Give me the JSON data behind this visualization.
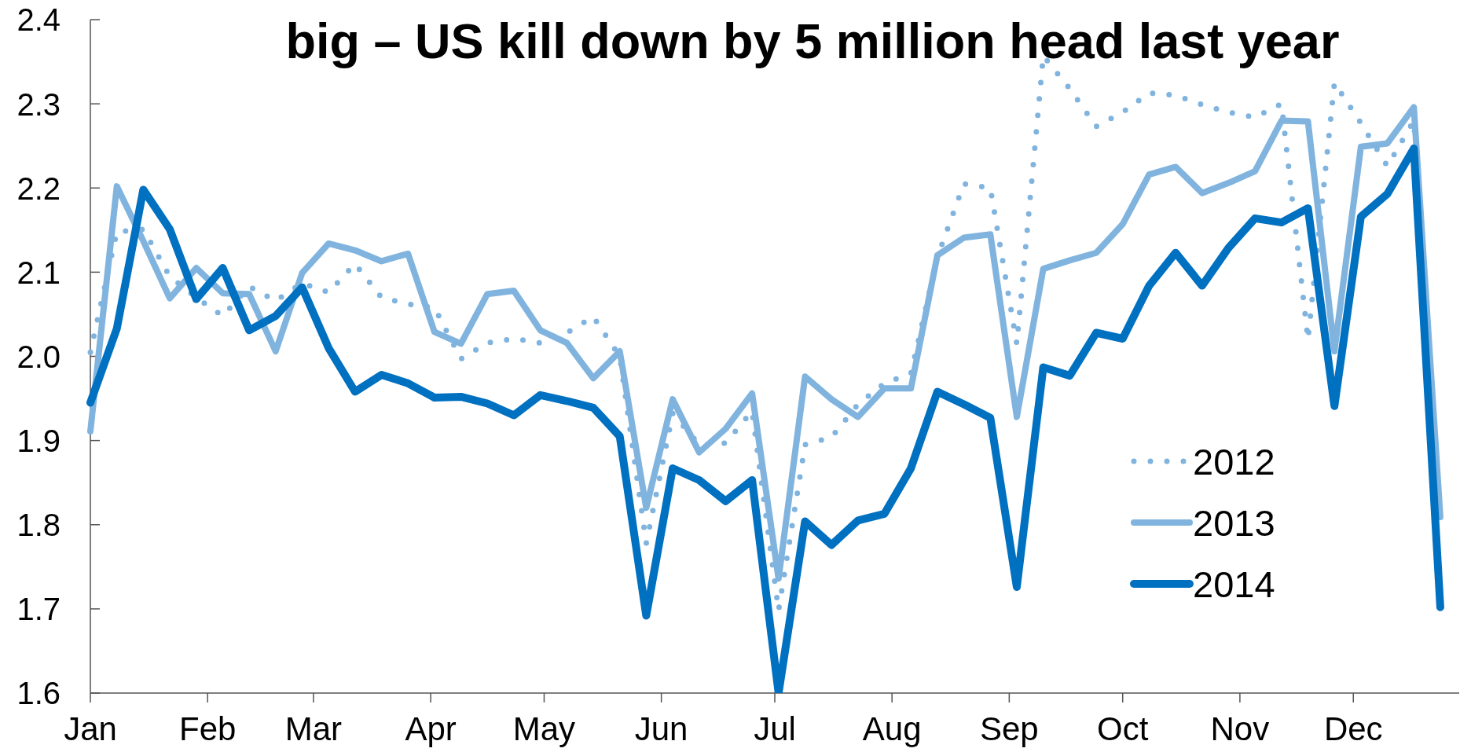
{
  "chart_data": {
    "type": "line",
    "title": "big – US kill down by 5 million head last year",
    "x": [
      "--01-01",
      "--01-08",
      "--01-15",
      "--01-22",
      "--01-29",
      "--02-05",
      "--02-12",
      "--02-19",
      "--02-26",
      "--03-05",
      "--03-12",
      "--03-19",
      "--03-26",
      "--04-02",
      "--04-09",
      "--04-16",
      "--04-23",
      "--04-30",
      "--05-07",
      "--05-14",
      "--05-21",
      "--05-28",
      "--06-04",
      "--06-11",
      "--06-18",
      "--06-25",
      "--07-02",
      "--07-09",
      "--07-16",
      "--07-23",
      "--07-30",
      "--08-06",
      "--08-13",
      "--08-20",
      "--08-27",
      "--09-03",
      "--09-10",
      "--09-17",
      "--09-24",
      "--10-01",
      "--10-08",
      "--10-15",
      "--10-22",
      "--10-29",
      "--11-05",
      "--11-12",
      "--11-19",
      "--11-26",
      "--12-03",
      "--12-10",
      "--12-17",
      "--12-24"
    ],
    "xlim": [
      "--01-01",
      "--12-29"
    ],
    "xticks": [
      {
        "value": "--01-01",
        "label": "Jan"
      },
      {
        "value": "--02-01",
        "label": "Feb"
      },
      {
        "value": "--03-01",
        "label": "Mar"
      },
      {
        "value": "--04-01",
        "label": "Apr"
      },
      {
        "value": "--05-01",
        "label": "May"
      },
      {
        "value": "--06-01",
        "label": "Jun"
      },
      {
        "value": "--07-01",
        "label": "Jul"
      },
      {
        "value": "--08-01",
        "label": "Aug"
      },
      {
        "value": "--09-01",
        "label": "Sep"
      },
      {
        "value": "--10-01",
        "label": "Oct"
      },
      {
        "value": "--11-01",
        "label": "Nov"
      },
      {
        "value": "--12-01",
        "label": "Dec"
      }
    ],
    "ylim": [
      1.6,
      2.4
    ],
    "yticks": [
      1.6,
      1.7,
      1.8,
      1.9,
      {
        "value": 2,
        "label": "2.0"
      },
      2.1,
      2.2,
      2.3,
      2.4
    ],
    "legend": "bottom right",
    "series": [
      {
        "name": "2012",
        "color": "#80b4de",
        "line_style": "dotted",
        "values": [
          2.005,
          2.148,
          2.151,
          2.095,
          2.07,
          2.048,
          2.083,
          2.066,
          2.087,
          2.076,
          2.11,
          2.07,
          2.062,
          2.058,
          1.997,
          2.016,
          2.021,
          2.016,
          2.028,
          2.047,
          2.0,
          1.778,
          1.932,
          1.895,
          1.897,
          1.935,
          1.698,
          1.895,
          1.904,
          1.943,
          1.968,
          1.98,
          2.118,
          2.205,
          2.2,
          2.015,
          2.357,
          2.318,
          2.273,
          2.29,
          2.313,
          2.31,
          2.299,
          2.29,
          2.284,
          2.3,
          2.02,
          2.325,
          2.277,
          2.226,
          2.28,
          1.81
        ]
      },
      {
        "name": "2013",
        "color": "#80b4de",
        "line_style": "solid",
        "values": [
          1.911,
          2.202,
          2.137,
          2.069,
          2.105,
          2.075,
          2.074,
          2.006,
          2.099,
          2.134,
          2.126,
          2.113,
          2.122,
          2.029,
          2.015,
          2.074,
          2.078,
          2.031,
          2.016,
          1.974,
          2.006,
          1.82,
          1.949,
          1.886,
          1.914,
          1.956,
          1.736,
          1.976,
          1.949,
          1.928,
          1.962,
          1.962,
          2.12,
          2.141,
          2.145,
          1.928,
          2.104,
          2.114,
          2.123,
          2.157,
          2.216,
          2.225,
          2.194,
          2.206,
          2.22,
          2.28,
          2.279,
          2.006,
          2.249,
          2.253,
          2.296,
          1.809
        ]
      },
      {
        "name": "2014",
        "color": "#0070c0",
        "line_style": "solid",
        "values": [
          1.945,
          2.033,
          2.198,
          2.151,
          2.068,
          2.105,
          2.031,
          2.048,
          2.082,
          2.01,
          1.958,
          1.978,
          1.968,
          1.951,
          1.952,
          1.944,
          1.93,
          1.954,
          1.947,
          1.939,
          1.905,
          1.692,
          1.867,
          1.853,
          1.828,
          1.853,
          1.6,
          1.804,
          1.776,
          1.805,
          1.813,
          1.867,
          1.958,
          1.943,
          1.927,
          1.726,
          1.987,
          1.977,
          2.028,
          2.021,
          2.084,
          2.123,
          2.084,
          2.129,
          2.164,
          2.159,
          2.176,
          1.941,
          2.166,
          2.193,
          2.247,
          1.702
        ]
      }
    ]
  }
}
